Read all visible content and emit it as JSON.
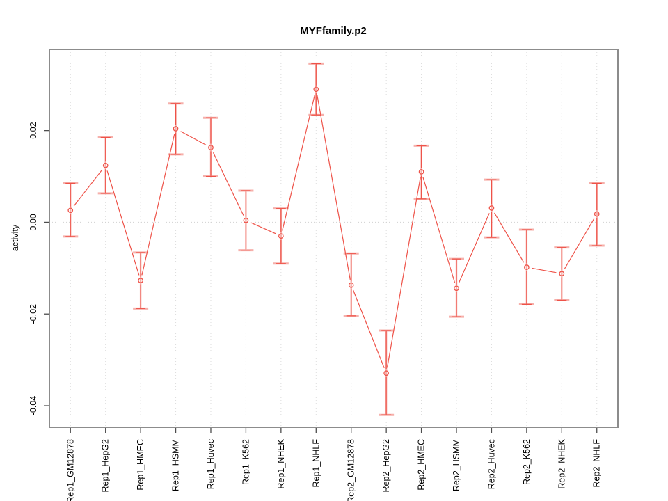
{
  "chart_data": {
    "type": "line",
    "title": "MYFfamily.p2",
    "xlabel": "",
    "ylabel": "activity",
    "categories": [
      "Rep1_GM12878",
      "Rep1_HepG2",
      "Rep1_HMEC",
      "Rep1_HSMM",
      "Rep1_Huvec",
      "Rep1_K562",
      "Rep1_NHEK",
      "Rep1_NHLF",
      "Rep2_GM12878",
      "Rep2_HepG2",
      "Rep2_HMEC",
      "Rep2_HSMM",
      "Rep2_Huvec",
      "Rep2_K562",
      "Rep2_NHEK",
      "Rep2_NHLF"
    ],
    "values": [
      0.0026,
      0.0124,
      -0.0127,
      0.0204,
      0.0163,
      0.0004,
      -0.003,
      0.029,
      -0.0137,
      -0.0329,
      0.011,
      -0.0144,
      0.0031,
      -0.0098,
      -0.0112,
      0.0018
    ],
    "error_low": [
      -0.0031,
      0.0063,
      -0.0188,
      0.0148,
      0.01,
      -0.0061,
      -0.009,
      0.0234,
      -0.0204,
      -0.042,
      0.0051,
      -0.0206,
      -0.0033,
      -0.0179,
      -0.017,
      -0.0051
    ],
    "error_high": [
      0.0085,
      0.0185,
      -0.0066,
      0.0259,
      0.0228,
      0.0069,
      0.003,
      0.0346,
      -0.0068,
      -0.0236,
      0.0167,
      -0.008,
      0.0093,
      -0.0016,
      -0.0055,
      0.0085
    ],
    "yticks": [
      -0.04,
      -0.02,
      0.0,
      0.02
    ],
    "ytick_labels": [
      "-0.04",
      "-0.02",
      "0.00",
      "0.02"
    ],
    "ylim": [
      -0.0447,
      0.0377
    ],
    "grid": "dotted vertical line at each category; dotted horizontal line at zero",
    "legend": null,
    "marker": "open-circle",
    "colors": {
      "series": "#ee5248",
      "series_light": "#f6b0ab",
      "gridline": "#dcdcdc",
      "zero_line": "#d0d0d0",
      "box": "#8c8c8c",
      "tick": "#4d4d4d",
      "text": "#000000",
      "background": "#ffffff"
    }
  }
}
